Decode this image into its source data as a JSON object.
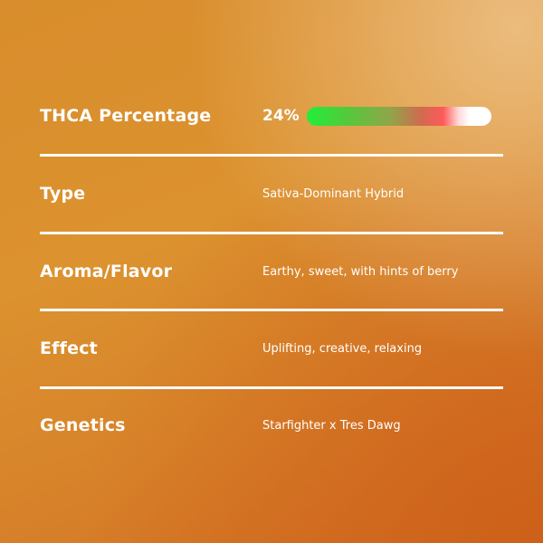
{
  "rows": [
    {
      "label": "THCA Percentage",
      "value": "24%",
      "bar_percent": 24,
      "bar_gradient": [
        "#22ee3a",
        "#ff5a5a",
        "#ffffff"
      ]
    },
    {
      "label": "Type",
      "value": "Sativa-Dominant Hybrid"
    },
    {
      "label": "Aroma/Flavor",
      "value": "Earthy, sweet, with hints of berry"
    },
    {
      "label": "Effect",
      "value": "Uplifting, creative, relaxing"
    },
    {
      "label": "Genetics",
      "value": "Starfighter x Tres Dawg"
    }
  ],
  "colors": {
    "background": "#d98d2c",
    "text": "#ffffff"
  }
}
